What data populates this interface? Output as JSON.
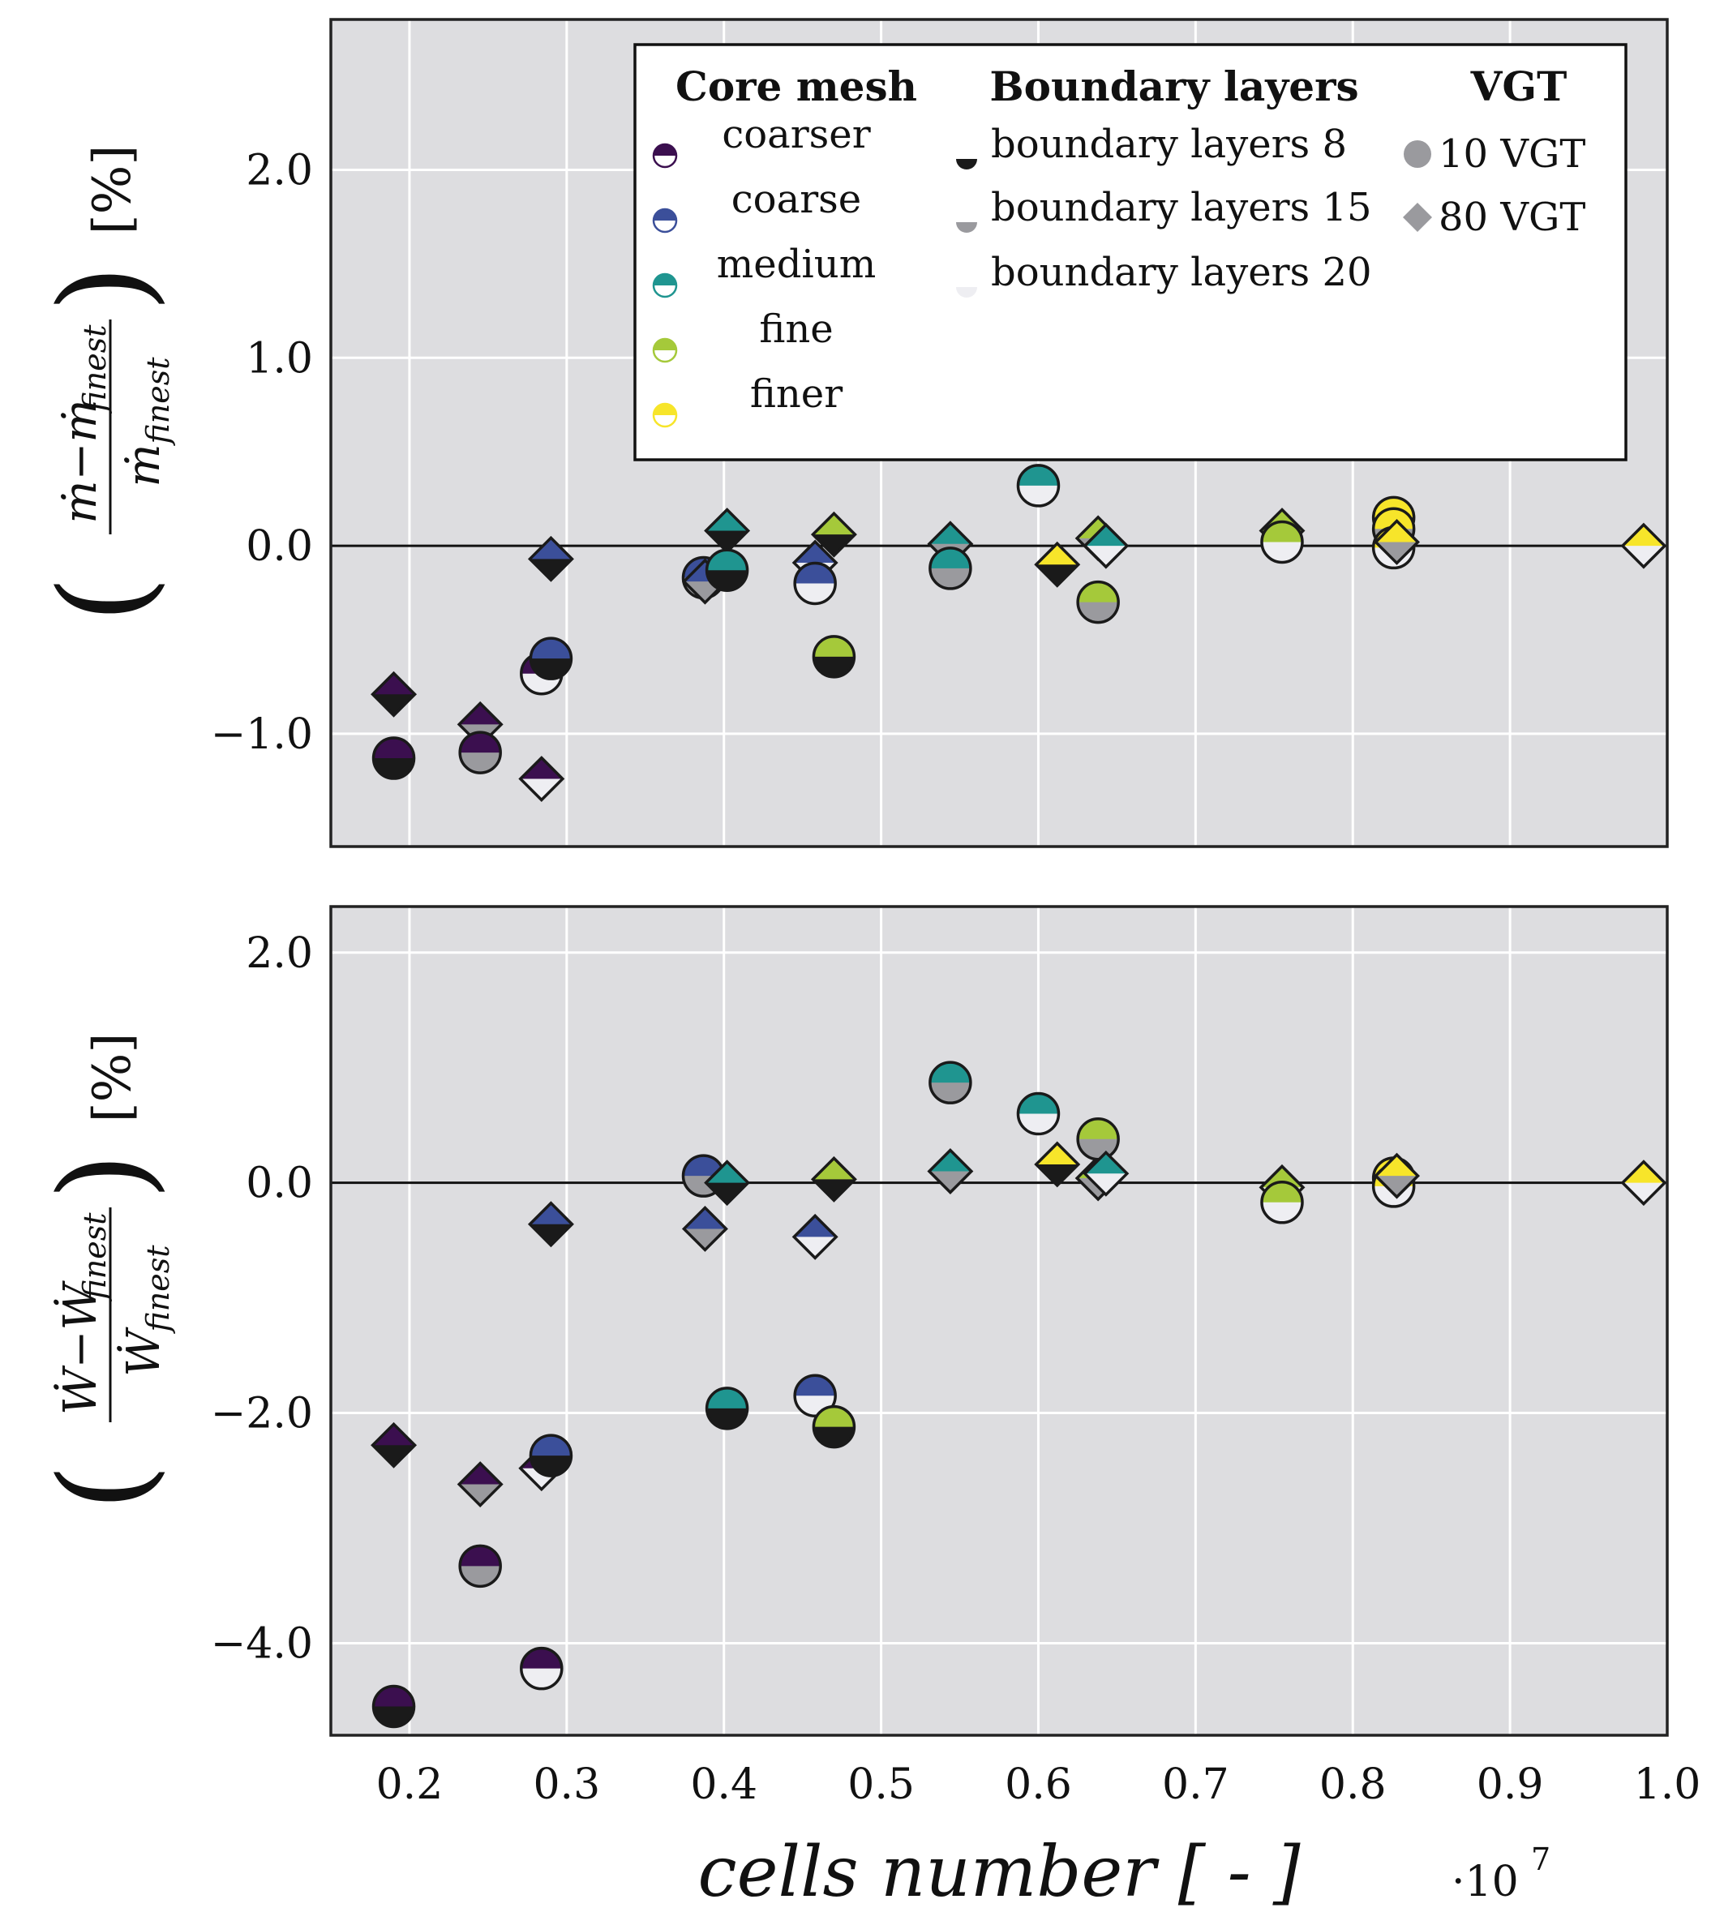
{
  "chart_data": [
    {
      "type": "scatter",
      "panel": "top",
      "ylabel": "(ṁ−ṁ_finest / ṁ_finest) [%]",
      "ylabel_parts": {
        "paren_open": "(",
        "numerator": "ṁ−ṁ",
        "numerator_sub": "finest",
        "denominator": "ṁ",
        "denominator_sub": "finest",
        "paren_close": ")",
        "unit": "[%]"
      },
      "xlim": [
        0.15,
        1.0
      ],
      "ylim": [
        -1.6,
        2.8
      ],
      "yticks": [
        -1.0,
        0.0,
        1.0,
        2.0
      ],
      "ytick_labels": [
        "−1.0",
        "0.0",
        "1.0",
        "2.0"
      ],
      "grid": true,
      "points": [
        {
          "x": 0.19,
          "y": -0.79,
          "mesh": "coarser",
          "bl": "8",
          "vgt": "80"
        },
        {
          "x": 0.19,
          "y": -1.13,
          "mesh": "coarser",
          "bl": "8",
          "vgt": "10"
        },
        {
          "x": 0.245,
          "y": -0.95,
          "mesh": "coarser",
          "bl": "15",
          "vgt": "80"
        },
        {
          "x": 0.245,
          "y": -1.1,
          "mesh": "coarser",
          "bl": "15",
          "vgt": "10"
        },
        {
          "x": 0.284,
          "y": -1.24,
          "mesh": "coarser",
          "bl": "20",
          "vgt": "80"
        },
        {
          "x": 0.284,
          "y": -0.68,
          "mesh": "coarser",
          "bl": "20",
          "vgt": "10"
        },
        {
          "x": 0.29,
          "y": -0.07,
          "mesh": "coarse",
          "bl": "8",
          "vgt": "80"
        },
        {
          "x": 0.29,
          "y": -0.6,
          "mesh": "coarse",
          "bl": "8",
          "vgt": "10"
        },
        {
          "x": 0.387,
          "y": -0.17,
          "mesh": "coarse",
          "bl": "15",
          "vgt": "10"
        },
        {
          "x": 0.388,
          "y": -0.19,
          "mesh": "coarse",
          "bl": "15",
          "vgt": "80"
        },
        {
          "x": 0.402,
          "y": 0.08,
          "mesh": "medium",
          "bl": "8",
          "vgt": "80"
        },
        {
          "x": 0.402,
          "y": -0.13,
          "mesh": "medium",
          "bl": "8",
          "vgt": "10"
        },
        {
          "x": 0.458,
          "y": -0.09,
          "mesh": "coarse",
          "bl": "20",
          "vgt": "80"
        },
        {
          "x": 0.458,
          "y": -0.2,
          "mesh": "coarse",
          "bl": "20",
          "vgt": "10"
        },
        {
          "x": 0.47,
          "y": 0.06,
          "mesh": "fine",
          "bl": "8",
          "vgt": "80"
        },
        {
          "x": 0.47,
          "y": -0.59,
          "mesh": "fine",
          "bl": "8",
          "vgt": "10"
        },
        {
          "x": 0.544,
          "y": 0.01,
          "mesh": "medium",
          "bl": "15",
          "vgt": "80"
        },
        {
          "x": 0.544,
          "y": -0.12,
          "mesh": "medium",
          "bl": "15",
          "vgt": "10"
        },
        {
          "x": 0.6,
          "y": 0.32,
          "mesh": "medium",
          "bl": "20",
          "vgt": "10"
        },
        {
          "x": 0.612,
          "y": -0.1,
          "mesh": "finer",
          "bl": "8",
          "vgt": "80"
        },
        {
          "x": 0.638,
          "y": 0.04,
          "mesh": "fine",
          "bl": "15",
          "vgt": "80"
        },
        {
          "x": 0.638,
          "y": -0.3,
          "mesh": "fine",
          "bl": "15",
          "vgt": "10"
        },
        {
          "x": 0.643,
          "y": 0.0,
          "mesh": "medium",
          "bl": "20",
          "vgt": "80"
        },
        {
          "x": 0.755,
          "y": 0.08,
          "mesh": "fine",
          "bl": "20",
          "vgt": "80"
        },
        {
          "x": 0.755,
          "y": 0.02,
          "mesh": "fine",
          "bl": "20",
          "vgt": "10"
        },
        {
          "x": 0.826,
          "y": 0.15,
          "mesh": "finer",
          "bl": "8",
          "vgt": "10"
        },
        {
          "x": 0.826,
          "y": 0.09,
          "mesh": "finer",
          "bl": "15",
          "vgt": "10"
        },
        {
          "x": 0.826,
          "y": -0.01,
          "mesh": "finer",
          "bl": "20",
          "vgt": "10"
        },
        {
          "x": 0.828,
          "y": 0.02,
          "mesh": "finer",
          "bl": "15",
          "vgt": "80"
        },
        {
          "x": 0.985,
          "y": 0.0,
          "mesh": "finer",
          "bl": "20",
          "vgt": "80"
        }
      ]
    },
    {
      "type": "scatter",
      "panel": "bottom",
      "ylabel": "(Ẇ−Ẇ_finest / Ẇ_finest) [%]",
      "ylabel_parts": {
        "paren_open": "(",
        "numerator": "Ẇ−Ẇ",
        "numerator_sub": "finest",
        "denominator": "Ẇ",
        "denominator_sub": "finest",
        "paren_close": ")",
        "unit": "[%]"
      },
      "xlabel": "cells number [ - ]",
      "xlim": [
        0.15,
        1.0
      ],
      "ylim": [
        -4.8,
        2.4
      ],
      "xticks": [
        0.2,
        0.3,
        0.4,
        0.5,
        0.6,
        0.7,
        0.8,
        0.9,
        1.0
      ],
      "xtick_labels": [
        "0.2",
        "0.3",
        "0.4",
        "0.5",
        "0.6",
        "0.7",
        "0.8",
        "0.9",
        "1.0"
      ],
      "x_multiplier": "·10",
      "x_multiplier_exp": "7",
      "yticks": [
        -4.0,
        -2.0,
        0.0,
        2.0
      ],
      "ytick_labels": [
        "−4.0",
        "−2.0",
        "0.0",
        "2.0"
      ],
      "grid": true,
      "points": [
        {
          "x": 0.19,
          "y": -2.28,
          "mesh": "coarser",
          "bl": "8",
          "vgt": "80"
        },
        {
          "x": 0.19,
          "y": -4.55,
          "mesh": "coarser",
          "bl": "8",
          "vgt": "10"
        },
        {
          "x": 0.245,
          "y": -2.62,
          "mesh": "coarser",
          "bl": "15",
          "vgt": "80"
        },
        {
          "x": 0.245,
          "y": -3.33,
          "mesh": "coarser",
          "bl": "15",
          "vgt": "10"
        },
        {
          "x": 0.284,
          "y": -2.48,
          "mesh": "coarser",
          "bl": "20",
          "vgt": "80"
        },
        {
          "x": 0.284,
          "y": -4.22,
          "mesh": "coarser",
          "bl": "20",
          "vgt": "10"
        },
        {
          "x": 0.29,
          "y": -0.36,
          "mesh": "coarse",
          "bl": "8",
          "vgt": "80"
        },
        {
          "x": 0.29,
          "y": -2.37,
          "mesh": "coarse",
          "bl": "8",
          "vgt": "10"
        },
        {
          "x": 0.387,
          "y": 0.06,
          "mesh": "coarse",
          "bl": "15",
          "vgt": "10"
        },
        {
          "x": 0.388,
          "y": -0.4,
          "mesh": "coarse",
          "bl": "15",
          "vgt": "80"
        },
        {
          "x": 0.402,
          "y": 0.0,
          "mesh": "medium",
          "bl": "8",
          "vgt": "80"
        },
        {
          "x": 0.402,
          "y": -1.96,
          "mesh": "medium",
          "bl": "8",
          "vgt": "10"
        },
        {
          "x": 0.458,
          "y": -0.47,
          "mesh": "coarse",
          "bl": "20",
          "vgt": "80"
        },
        {
          "x": 0.458,
          "y": -1.85,
          "mesh": "coarse",
          "bl": "20",
          "vgt": "10"
        },
        {
          "x": 0.47,
          "y": 0.03,
          "mesh": "fine",
          "bl": "8",
          "vgt": "80"
        },
        {
          "x": 0.47,
          "y": -2.12,
          "mesh": "fine",
          "bl": "8",
          "vgt": "10"
        },
        {
          "x": 0.544,
          "y": 0.1,
          "mesh": "medium",
          "bl": "15",
          "vgt": "80"
        },
        {
          "x": 0.544,
          "y": 0.87,
          "mesh": "medium",
          "bl": "15",
          "vgt": "10"
        },
        {
          "x": 0.6,
          "y": 0.6,
          "mesh": "medium",
          "bl": "20",
          "vgt": "10"
        },
        {
          "x": 0.612,
          "y": 0.16,
          "mesh": "finer",
          "bl": "8",
          "vgt": "80"
        },
        {
          "x": 0.638,
          "y": 0.04,
          "mesh": "fine",
          "bl": "15",
          "vgt": "80"
        },
        {
          "x": 0.638,
          "y": 0.38,
          "mesh": "fine",
          "bl": "15",
          "vgt": "10"
        },
        {
          "x": 0.643,
          "y": 0.08,
          "mesh": "medium",
          "bl": "20",
          "vgt": "80"
        },
        {
          "x": 0.755,
          "y": -0.04,
          "mesh": "fine",
          "bl": "20",
          "vgt": "80"
        },
        {
          "x": 0.755,
          "y": -0.17,
          "mesh": "fine",
          "bl": "20",
          "vgt": "10"
        },
        {
          "x": 0.826,
          "y": 0.04,
          "mesh": "finer",
          "bl": "8",
          "vgt": "10"
        },
        {
          "x": 0.826,
          "y": -0.03,
          "mesh": "finer",
          "bl": "20",
          "vgt": "10"
        },
        {
          "x": 0.828,
          "y": 0.06,
          "mesh": "finer",
          "bl": "15",
          "vgt": "80"
        },
        {
          "x": 0.985,
          "y": 0.0,
          "mesh": "finer",
          "bl": "20",
          "vgt": "80"
        }
      ]
    }
  ],
  "legend": {
    "placement": "top-right of top panel",
    "core_title": "Core mesh",
    "core_items": [
      {
        "key": "coarser",
        "label": "coarser",
        "color": "#3b0f4f"
      },
      {
        "key": "coarse",
        "label": "coarse",
        "color": "#3b4f9a"
      },
      {
        "key": "medium",
        "label": "medium",
        "color": "#1f9590"
      },
      {
        "key": "fine",
        "label": "fine",
        "color": "#a5c93a"
      },
      {
        "key": "finer",
        "label": "finer",
        "color": "#f7e52a"
      }
    ],
    "bl_title": "Boundary layers",
    "bl_items": [
      {
        "key": "8",
        "label": "boundary layers 8",
        "color": "#1a1a1a"
      },
      {
        "key": "15",
        "label": "boundary layers 15",
        "color": "#9a9a9e"
      },
      {
        "key": "20",
        "label": "boundary layers 20",
        "color": "#eeeef2"
      }
    ],
    "vgt_title": "VGT",
    "vgt_items": [
      {
        "key": "10",
        "label": "10 VGT",
        "marker": "circle"
      },
      {
        "key": "80",
        "label": "80 VGT",
        "marker": "diamond"
      }
    ]
  },
  "colors": {
    "plot_bg": "#dddde0",
    "grid": "#ffffff",
    "frame": "#222222",
    "legend_marker_gray": "#9a9a9e"
  }
}
